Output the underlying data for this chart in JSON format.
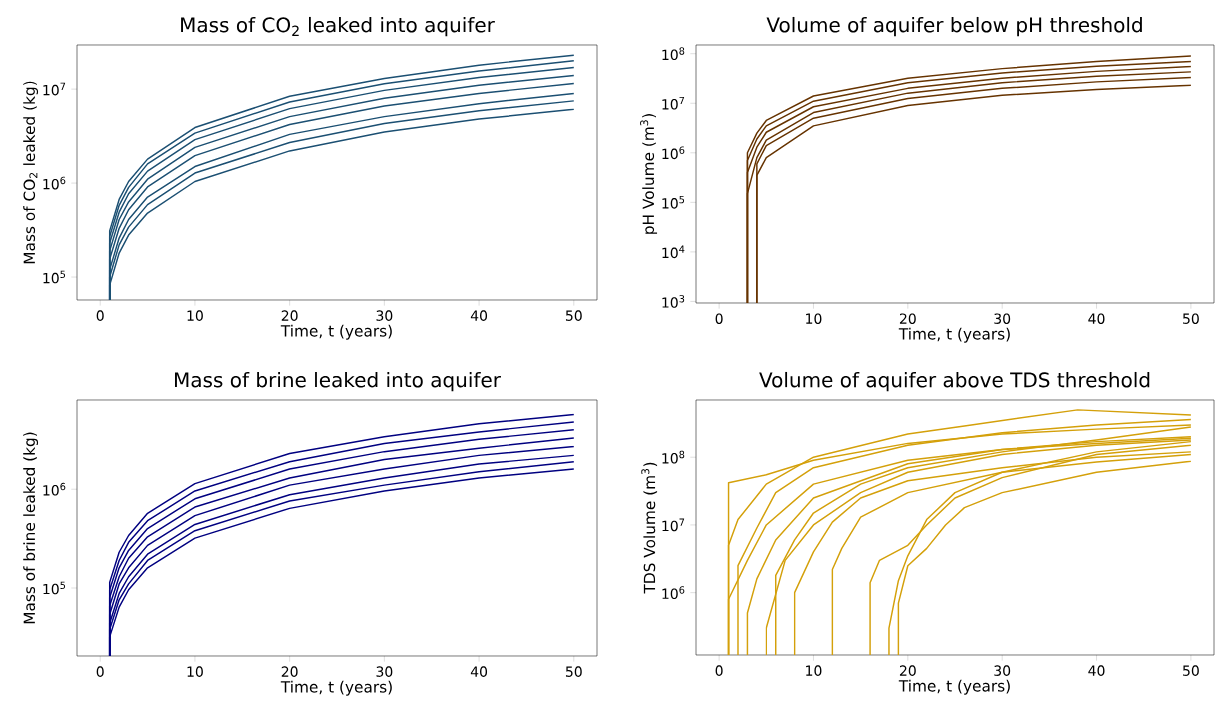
{
  "chart_data": [
    {
      "type": "line",
      "title": "Mass of CO$_{2}$ leaked into aquifer",
      "xlabel": "Time, t (years)",
      "ylabel": "Mass of CO$_{2}$ leaked (kg)",
      "log": true,
      "xlim": [
        -2.45,
        52.45
      ],
      "ylim": [
        57000,
        29500000
      ],
      "xticks": [
        0,
        10,
        20,
        30,
        40,
        50
      ],
      "yticks": [
        {
          "value": 100000,
          "label": "10$^{5}$"
        },
        {
          "value": 1000000,
          "label": "10$^{6}$"
        },
        {
          "value": 10000000,
          "label": "10$^{7}$"
        }
      ],
      "series": [
        {
          "color": "#1b4f72",
          "x": [
            1,
            1,
            2,
            3,
            5,
            10,
            20,
            30,
            40,
            50
          ],
          "values": [
            57000,
            310000,
            670000,
            1040000,
            1800000,
            3900000,
            8400000,
            13000000,
            18000000,
            23000000
          ]
        },
        {
          "color": "#1b4f72",
          "x": [
            1,
            1,
            2,
            3,
            5,
            10,
            20,
            30,
            40,
            50
          ],
          "values": [
            57000,
            270000,
            580000,
            900000,
            1600000,
            3400000,
            7300000,
            11400000,
            15600000,
            20000000
          ]
        },
        {
          "color": "#1b4f72",
          "x": [
            1,
            1,
            2,
            3,
            5,
            10,
            20,
            30,
            40,
            50
          ],
          "values": [
            57000,
            230000,
            490000,
            770000,
            1340000,
            2900000,
            6200000,
            9700000,
            13300000,
            17000000
          ]
        },
        {
          "color": "#1b4f72",
          "x": [
            1,
            1,
            2,
            3,
            5,
            10,
            20,
            30,
            40,
            50
          ],
          "values": [
            57000,
            190000,
            410000,
            630000,
            1100000,
            2400000,
            5100000,
            8000000,
            11000000,
            14000000
          ]
        },
        {
          "color": "#1b4f72",
          "x": [
            1,
            1,
            2,
            3,
            5,
            10,
            20,
            30,
            40,
            50
          ],
          "values": [
            57000,
            155000,
            330000,
            520000,
            910000,
            1960000,
            4200000,
            6600000,
            9000000,
            11500000
          ]
        },
        {
          "color": "#1b4f72",
          "x": [
            1,
            1,
            2,
            3,
            5,
            10,
            20,
            30,
            40,
            50
          ],
          "values": [
            57000,
            120000,
            260000,
            410000,
            710000,
            1500000,
            3300000,
            5100000,
            7000000,
            9000000
          ]
        },
        {
          "color": "#1b4f72",
          "x": [
            1,
            1,
            2,
            3,
            5,
            10,
            20,
            30,
            40,
            50
          ],
          "values": [
            57000,
            100000,
            220000,
            340000,
            590000,
            1280000,
            2700000,
            4300000,
            5900000,
            7500000
          ]
        },
        {
          "color": "#1b4f72",
          "x": [
            1,
            1,
            2,
            3,
            5,
            10,
            20,
            30,
            40,
            50
          ],
          "values": [
            57000,
            82000,
            180000,
            280000,
            480000,
            1040000,
            2200000,
            3500000,
            4800000,
            6100000
          ]
        }
      ]
    },
    {
      "type": "line",
      "title": "Volume of aquifer below pH threshold",
      "xlabel": "Time, t (years)",
      "ylabel": "pH Volume (m$^{3}$)",
      "log": true,
      "xlim": [
        -2.45,
        52.45
      ],
      "ylim": [
        930,
        150000000
      ],
      "xticks": [
        0,
        10,
        20,
        30,
        40,
        50
      ],
      "yticks": [
        {
          "value": 1000,
          "label": "10$^{3}$"
        },
        {
          "value": 10000,
          "label": "10$^{4}$"
        },
        {
          "value": 100000,
          "label": "10$^{5}$"
        },
        {
          "value": 1000000,
          "label": "10$^{6}$"
        },
        {
          "value": 10000000,
          "label": "10$^{7}$"
        },
        {
          "value": 100000000,
          "label": "10$^{8}$"
        }
      ],
      "series": [
        {
          "color": "#663300",
          "x": [
            3,
            3,
            4,
            5,
            10,
            20,
            30,
            40,
            50
          ],
          "values": [
            930,
            1000000,
            2500000,
            4500000,
            14000000,
            32000000,
            50000000,
            70000000,
            90000000
          ]
        },
        {
          "color": "#663300",
          "x": [
            3,
            3,
            4,
            5,
            10,
            20,
            30,
            40,
            50
          ],
          "values": [
            930,
            700000,
            1900000,
            3500000,
            11000000,
            26000000,
            41000000,
            56000000,
            70000000
          ]
        },
        {
          "color": "#663300",
          "x": [
            3,
            3,
            4,
            5,
            10,
            20,
            30,
            40,
            50
          ],
          "values": [
            930,
            400000,
            1300000,
            2600000,
            8500000,
            20000000,
            32000000,
            44000000,
            55000000
          ]
        },
        {
          "color": "#663300",
          "x": [
            3,
            3,
            4,
            5,
            10,
            20,
            30,
            40,
            50
          ],
          "values": [
            930,
            150000,
            800000,
            1800000,
            6500000,
            16000000,
            26000000,
            35000000,
            43000000
          ]
        },
        {
          "color": "#663300",
          "x": [
            4,
            4,
            5,
            10,
            20,
            30,
            40,
            50
          ],
          "values": [
            930,
            600000,
            1400000,
            5000000,
            12500000,
            20000000,
            27000000,
            33000000
          ]
        },
        {
          "color": "#663300",
          "x": [
            4,
            4,
            5,
            10,
            20,
            30,
            40,
            50
          ],
          "values": [
            930,
            350000,
            800000,
            3500000,
            9000000,
            14500000,
            19000000,
            23000000
          ]
        }
      ]
    },
    {
      "type": "line",
      "title": "Mass of brine leaked into aquifer",
      "xlabel": "Time, t (years)",
      "ylabel": "Mass of brine leaked (kg)",
      "log": true,
      "xlim": [
        -2.45,
        52.45
      ],
      "ylim": [
        20500,
        8000000
      ],
      "xticks": [
        0,
        10,
        20,
        30,
        40,
        50
      ],
      "yticks": [
        {
          "value": 100000,
          "label": "10$^{5}$"
        },
        {
          "value": 1000000,
          "label": "10$^{6}$"
        }
      ],
      "series": [
        {
          "color": "#000080",
          "x": [
            1,
            1,
            2,
            3,
            5,
            10,
            20,
            30,
            40,
            50
          ],
          "values": [
            20500,
            114000,
            230000,
            340000,
            570000,
            1140000,
            2300000,
            3400000,
            4600000,
            5700000
          ]
        },
        {
          "color": "#000080",
          "x": [
            1,
            1,
            2,
            3,
            5,
            10,
            20,
            30,
            40,
            50
          ],
          "values": [
            20500,
            96000,
            190000,
            290000,
            480000,
            960000,
            1900000,
            2900000,
            3800000,
            4800000
          ]
        },
        {
          "color": "#000080",
          "x": [
            1,
            1,
            2,
            3,
            5,
            10,
            20,
            30,
            40,
            50
          ],
          "values": [
            20500,
            80000,
            160000,
            240000,
            400000,
            800000,
            1600000,
            2400000,
            3200000,
            4000000
          ]
        },
        {
          "color": "#000080",
          "x": [
            1,
            1,
            2,
            3,
            5,
            10,
            20,
            30,
            40,
            50
          ],
          "values": [
            20500,
            66000,
            130000,
            200000,
            330000,
            660000,
            1300000,
            2000000,
            2600000,
            3300000
          ]
        },
        {
          "color": "#000080",
          "x": [
            1,
            1,
            2,
            3,
            5,
            10,
            20,
            30,
            40,
            50
          ],
          "values": [
            20500,
            54000,
            110000,
            160000,
            270000,
            540000,
            1100000,
            1600000,
            2200000,
            2700000
          ]
        },
        {
          "color": "#000080",
          "x": [
            1,
            1,
            2,
            3,
            5,
            10,
            20,
            30,
            40,
            50
          ],
          "values": [
            20500,
            44000,
            88000,
            130000,
            220000,
            440000,
            880000,
            1300000,
            1800000,
            2200000
          ]
        },
        {
          "color": "#000080",
          "x": [
            1,
            1,
            2,
            3,
            5,
            10,
            20,
            30,
            40,
            50
          ],
          "values": [
            20500,
            38000,
            76000,
            110000,
            190000,
            380000,
            760000,
            1100000,
            1500000,
            1900000
          ]
        },
        {
          "color": "#000080",
          "x": [
            1,
            1,
            2,
            3,
            5,
            10,
            20,
            30,
            40,
            50
          ],
          "values": [
            20500,
            32000,
            64000,
            96000,
            160000,
            320000,
            640000,
            960000,
            1300000,
            1600000
          ]
        }
      ]
    },
    {
      "type": "line",
      "title": "Volume of aquifer above TDS threshold",
      "xlabel": "Time, t (years)",
      "ylabel": "TDS Volume (m$^{3}$)",
      "log": true,
      "xlim": [
        -2.45,
        52.45
      ],
      "ylim": [
        120000,
        700000000
      ],
      "xticks": [
        0,
        10,
        20,
        30,
        40,
        50
      ],
      "yticks": [
        {
          "value": 1000000,
          "label": "10$^{6}$"
        },
        {
          "value": 10000000,
          "label": "10$^{7}$"
        },
        {
          "value": 100000000,
          "label": "10$^{8}$"
        }
      ],
      "series": [
        {
          "color": "#d4a00a",
          "x": [
            1,
            1,
            5,
            10,
            20,
            30,
            40,
            50
          ],
          "values": [
            120000,
            42000000,
            55000000,
            90000000,
            160000000,
            220000000,
            260000000,
            300000000
          ]
        },
        {
          "color": "#d4a00a",
          "x": [
            1,
            1,
            2,
            5,
            10,
            20,
            26,
            38,
            50
          ],
          "values": [
            120000,
            5000000,
            12000000,
            40000000,
            100000000,
            220000000,
            290000000,
            500000000,
            420000000
          ]
        },
        {
          "color": "#d4a00a",
          "x": [
            1,
            1,
            3,
            5,
            10,
            20,
            30,
            40,
            50
          ],
          "values": [
            120000,
            800000,
            3000000,
            10000000,
            40000000,
            90000000,
            130000000,
            170000000,
            200000000
          ]
        },
        {
          "color": "#d4a00a",
          "x": [
            2,
            2,
            4,
            6,
            10,
            20,
            30,
            40,
            50
          ],
          "values": [
            120000,
            2500000,
            9000000,
            30000000,
            70000000,
            150000000,
            230000000,
            300000000,
            360000000
          ]
        },
        {
          "color": "#d4a00a",
          "x": [
            3,
            3,
            4,
            6,
            10,
            20,
            30,
            40,
            50
          ],
          "values": [
            120000,
            500000,
            1600000,
            6000000,
            25000000,
            80000000,
            130000000,
            160000000,
            190000000
          ]
        },
        {
          "color": "#d4a00a",
          "x": [
            5,
            5,
            7,
            10,
            15,
            20,
            30,
            40,
            50
          ],
          "values": [
            120000,
            300000,
            3000000,
            10000000,
            30000000,
            60000000,
            110000000,
            150000000,
            180000000
          ]
        },
        {
          "color": "#d4a00a",
          "x": [
            6,
            6,
            8,
            10,
            15,
            20,
            30,
            40,
            50
          ],
          "values": [
            120000,
            1800000,
            6000000,
            15000000,
            40000000,
            70000000,
            120000000,
            180000000,
            280000000
          ]
        },
        {
          "color": "#d4a00a",
          "x": [
            8,
            8,
            10,
            12,
            15,
            20,
            30,
            40,
            50
          ],
          "values": [
            120000,
            1000000,
            4000000,
            11000000,
            25000000,
            45000000,
            70000000,
            100000000,
            120000000
          ]
        },
        {
          "color": "#d4a00a",
          "x": [
            12,
            12,
            13,
            15,
            20,
            30,
            40,
            50
          ],
          "values": [
            120000,
            2200000,
            4500000,
            13000000,
            30000000,
            60000000,
            85000000,
            110000000
          ]
        },
        {
          "color": "#d4a00a",
          "x": [
            16,
            16,
            17,
            20,
            22,
            25,
            30,
            40,
            50
          ],
          "values": [
            120000,
            1400000,
            3000000,
            5000000,
            10000000,
            25000000,
            50000000,
            110000000,
            150000000
          ]
        },
        {
          "color": "#d4a00a",
          "x": [
            18,
            18,
            19,
            20,
            22,
            25,
            30,
            40,
            50
          ],
          "values": [
            120000,
            300000,
            1500000,
            3500000,
            12000000,
            30000000,
            60000000,
            120000000,
            170000000
          ]
        },
        {
          "color": "#d4a00a",
          "x": [
            19,
            19,
            20,
            22,
            24,
            26,
            30,
            40,
            50
          ],
          "values": [
            120000,
            700000,
            2500000,
            4500000,
            10000000,
            18000000,
            30000000,
            60000000,
            87000000
          ]
        }
      ]
    }
  ]
}
